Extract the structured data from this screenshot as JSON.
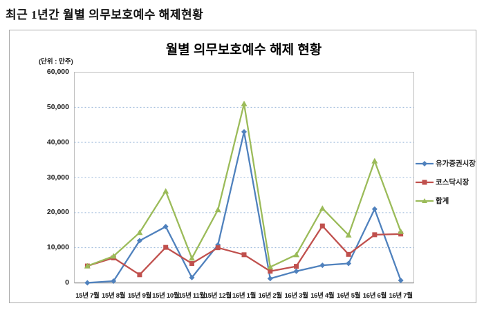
{
  "page": {
    "heading": "최근 1년간 월별 의무보호예수 해제현황"
  },
  "chart": {
    "title": "월별 의무보호예수 해제 현황",
    "unit_label": "(단위 : 만주)"
  },
  "chart_data": {
    "type": "line",
    "title": "월별 의무보호예수 해제 현황",
    "unit": "만주",
    "categories": [
      "15년 7월",
      "15년 8월",
      "15년 9월",
      "15년 10월",
      "15년 11월",
      "15년 12월",
      "16년 1월",
      "16년 2월",
      "16년 3월",
      "16년 4월",
      "16년 5월",
      "16년 6월",
      "16년 7월"
    ],
    "series": [
      {
        "name": "유가증권시장",
        "color": "#4F81BD",
        "marker": "diamond",
        "values": [
          0,
          500,
          12000,
          16000,
          1500,
          10800,
          43000,
          1200,
          3300,
          5000,
          5500,
          21000,
          700
        ]
      },
      {
        "name": "코스닥시장",
        "color": "#C0504D",
        "marker": "square",
        "values": [
          4800,
          7100,
          2300,
          10100,
          5500,
          10000,
          8000,
          3300,
          4700,
          16200,
          8100,
          13700,
          13900
        ]
      },
      {
        "name": "합계",
        "color": "#9BBB59",
        "marker": "triangle",
        "values": [
          4800,
          7600,
          14300,
          26100,
          7000,
          20800,
          51000,
          4500,
          8000,
          21200,
          13600,
          34700,
          14600
        ]
      }
    ],
    "ylim": [
      0,
      60000
    ],
    "y_tick_step": 10000,
    "y_tick_labels": [
      "0",
      "10,000",
      "20,000",
      "30,000",
      "40,000",
      "50,000",
      "60,000"
    ],
    "grid": "horizontal-dotted",
    "legend_position": "right",
    "colors": {
      "gridline": "#95B3D7",
      "plot_border": "#BDBDBD",
      "axis_line": "#ADADAD",
      "title": "#000000"
    }
  }
}
